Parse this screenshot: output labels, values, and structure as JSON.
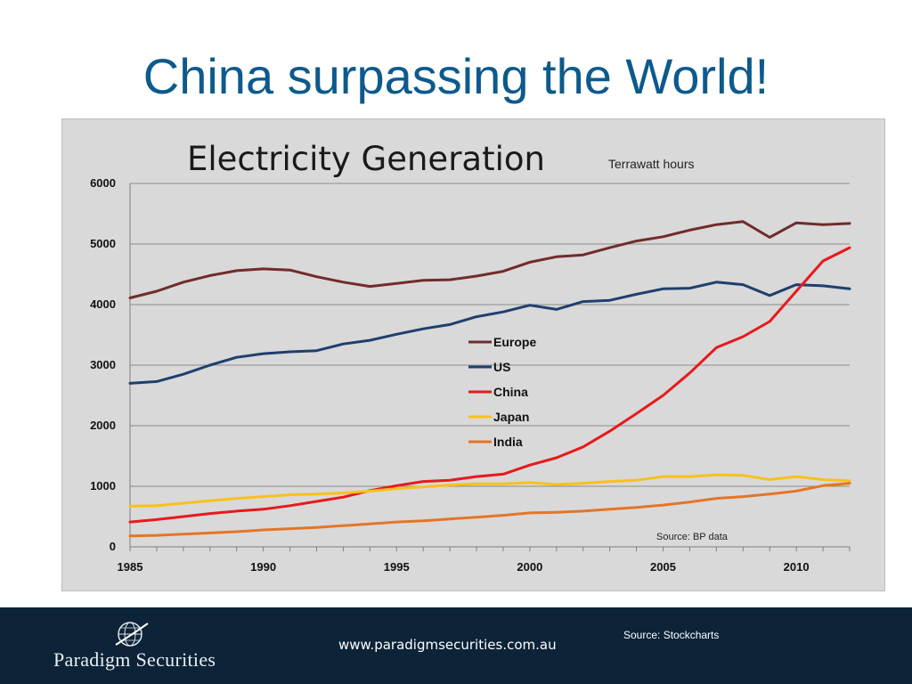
{
  "slide": {
    "title": "China surpassing the World!"
  },
  "footer": {
    "brand": "Paradigm Securities",
    "url": "www.paradigmsecurities.com.au",
    "source": "Source: Stockcharts"
  },
  "chart_data": {
    "type": "line",
    "title": "Electricity Generation",
    "subtitle": "Terrawatt hours",
    "annotation": "Source: BP data",
    "xlabel": "",
    "ylabel": "",
    "xlim": [
      1985,
      2012
    ],
    "ylim": [
      0,
      6000
    ],
    "x_ticks": [
      1985,
      1990,
      1995,
      2000,
      2005,
      2010
    ],
    "y_ticks": [
      0,
      1000,
      2000,
      3000,
      4000,
      5000,
      6000
    ],
    "grid": "horizontal",
    "legend_position": "center",
    "x": [
      1985,
      1986,
      1987,
      1988,
      1989,
      1990,
      1991,
      1992,
      1993,
      1994,
      1995,
      1996,
      1997,
      1998,
      1999,
      2000,
      2001,
      2002,
      2003,
      2004,
      2005,
      2006,
      2007,
      2008,
      2009,
      2010,
      2011,
      2012
    ],
    "series": [
      {
        "name": "Europe",
        "color": "#722b2b",
        "values": [
          4110,
          4220,
          4370,
          4480,
          4560,
          4590,
          4570,
          4460,
          4370,
          4300,
          4350,
          4400,
          4410,
          4470,
          4550,
          4700,
          4790,
          4820,
          4940,
          5050,
          5120,
          5230,
          5320,
          5370,
          5110,
          5350,
          5320,
          5340
        ]
      },
      {
        "name": "US",
        "color": "#1f3f6e",
        "values": [
          2700,
          2730,
          2850,
          3000,
          3130,
          3190,
          3220,
          3240,
          3350,
          3410,
          3510,
          3600,
          3670,
          3800,
          3880,
          3990,
          3920,
          4050,
          4070,
          4170,
          4260,
          4270,
          4370,
          4330,
          4150,
          4330,
          4310,
          4260
        ]
      },
      {
        "name": "China",
        "color": "#e8191b",
        "values": [
          410,
          450,
          500,
          550,
          590,
          620,
          680,
          750,
          820,
          930,
          1010,
          1080,
          1100,
          1160,
          1200,
          1350,
          1470,
          1650,
          1910,
          2200,
          2500,
          2870,
          3290,
          3470,
          3720,
          4220,
          4720,
          4940
        ]
      },
      {
        "name": "Japan",
        "color": "#f7c21a",
        "values": [
          670,
          680,
          720,
          760,
          800,
          830,
          860,
          870,
          890,
          920,
          960,
          990,
          1020,
          1040,
          1040,
          1060,
          1030,
          1050,
          1080,
          1100,
          1160,
          1160,
          1190,
          1180,
          1110,
          1160,
          1110,
          1090
        ]
      },
      {
        "name": "India",
        "color": "#e47526",
        "values": [
          180,
          190,
          210,
          230,
          250,
          280,
          300,
          320,
          350,
          380,
          410,
          430,
          460,
          490,
          520,
          560,
          570,
          590,
          620,
          650,
          690,
          740,
          800,
          830,
          870,
          920,
          1010,
          1050
        ]
      }
    ]
  }
}
